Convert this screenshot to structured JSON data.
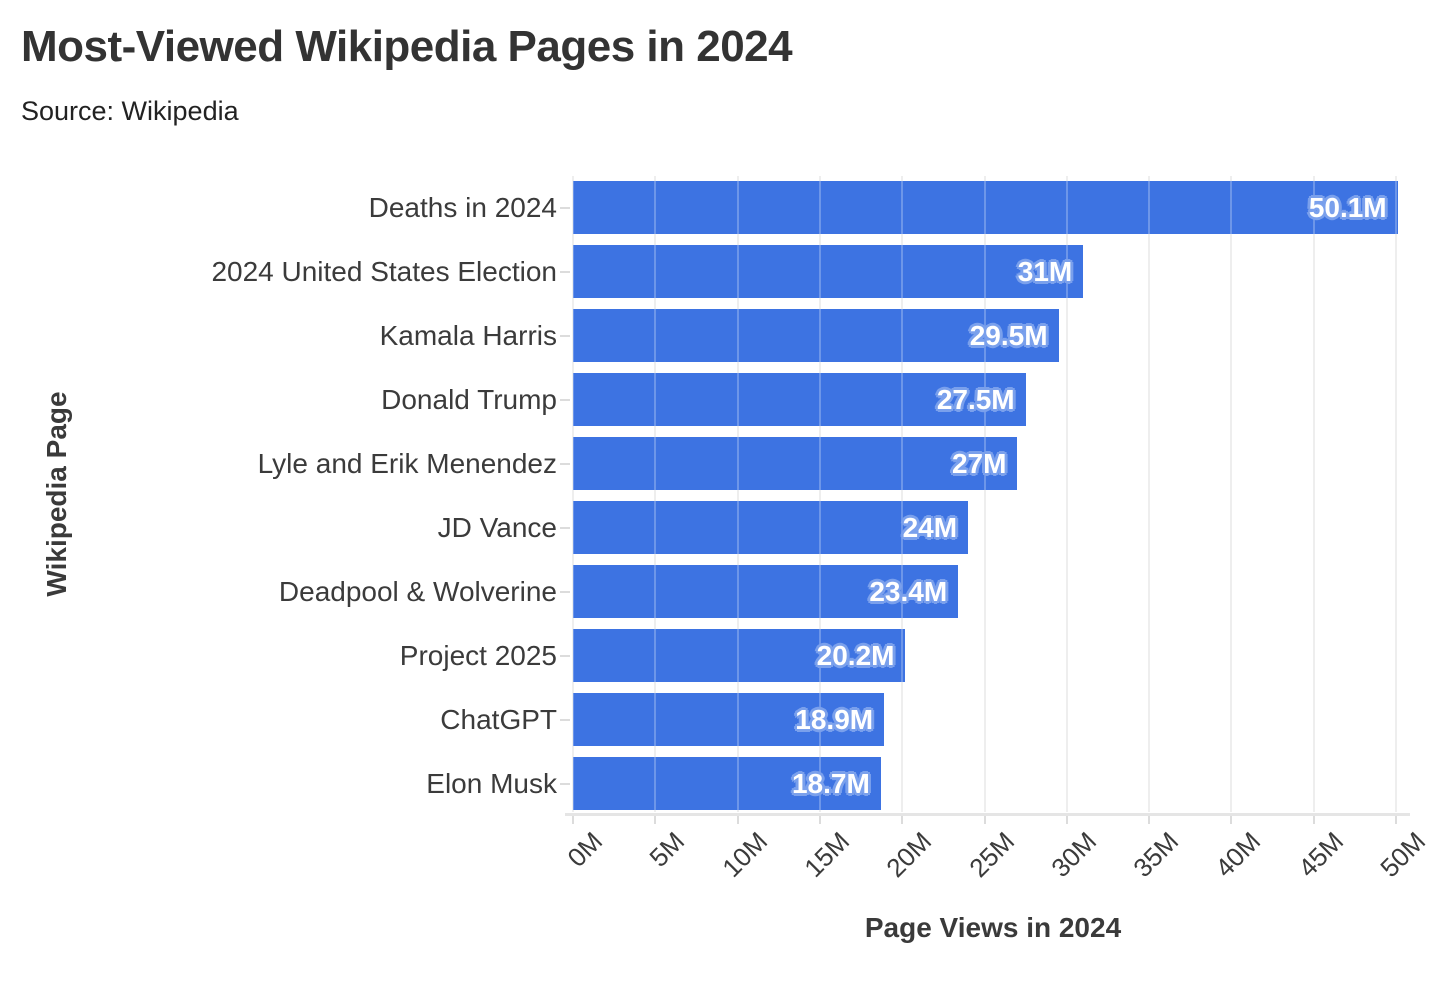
{
  "header": {
    "title": "Most-Viewed Wikipedia Pages in 2024",
    "subtitle": "Source: Wikipedia"
  },
  "colors": {
    "bar": "#3d73e2",
    "value_label_text": "#ffffff",
    "value_label_halo": "#7aa0ec",
    "gridline": "#e9e9e9",
    "axis_text": "#3a3a3a",
    "title_text": "#333333"
  },
  "chart_data": {
    "type": "bar",
    "orientation": "horizontal",
    "title": "Most-Viewed Wikipedia Pages in 2024",
    "subtitle": "Source: Wikipedia",
    "xlabel": "Page Views in 2024",
    "ylabel": "Wikipedia Page",
    "categories": [
      "Deaths in 2024",
      "2024 United States Election",
      "Kamala Harris",
      "Donald Trump",
      "Lyle and Erik Menendez",
      "JD Vance",
      "Deadpool & Wolverine",
      "Project 2025",
      "ChatGPT",
      "Elon Musk"
    ],
    "values_millions": [
      50.1,
      31,
      29.5,
      27.5,
      27,
      24,
      23.4,
      20.2,
      18.9,
      18.7
    ],
    "value_labels": [
      "50.1M",
      "31M",
      "29.5M",
      "27.5M",
      "27M",
      "24M",
      "23.4M",
      "20.2M",
      "18.9M",
      "18.7M"
    ],
    "xlim": [
      0,
      50
    ],
    "x_tick_values": [
      0,
      5,
      10,
      15,
      20,
      25,
      30,
      35,
      40,
      45,
      50
    ],
    "x_tick_labels": [
      "0M",
      "5M",
      "10M",
      "15M",
      "20M",
      "25M",
      "30M",
      "35M",
      "40M",
      "45M",
      "50M"
    ],
    "grid": true,
    "legend": false
  }
}
